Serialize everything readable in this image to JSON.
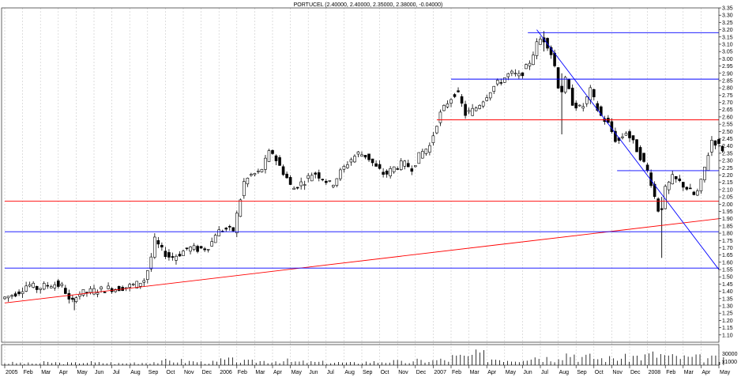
{
  "chart_data": {
    "type": "candlestick",
    "title": "PORTUCEL (2.40000, 2.40000, 2.35000, 2.38000, -0.04000)",
    "y_axis": {
      "ylim": [
        1.05,
        3.35
      ],
      "ticks": [
        "1.10",
        "1.15",
        "1.20",
        "1.25",
        "1.30",
        "1.35",
        "1.40",
        "1.45",
        "1.50",
        "1.55",
        "1.60",
        "1.65",
        "1.70",
        "1.75",
        "1.80",
        "1.85",
        "1.90",
        "1.95",
        "2.00",
        "2.05",
        "2.10",
        "2.15",
        "2.20",
        "2.25",
        "2.30",
        "2.35",
        "2.40",
        "2.45",
        "2.50",
        "2.55",
        "2.60",
        "2.65",
        "2.70",
        "2.75",
        "2.80",
        "2.85",
        "2.90",
        "2.95",
        "3.00",
        "3.05",
        "3.10",
        "3.15",
        "3.20",
        "3.25",
        "3.30",
        "3.35"
      ]
    },
    "x_axis": {
      "xlim": [
        0,
        41
      ],
      "labels": [
        {
          "m": 0,
          "text": "2005"
        },
        {
          "m": 1,
          "text": "Feb"
        },
        {
          "m": 2,
          "text": "Mar"
        },
        {
          "m": 3,
          "text": "Apr"
        },
        {
          "m": 4,
          "text": "May"
        },
        {
          "m": 5,
          "text": "Jun"
        },
        {
          "m": 6,
          "text": "Jul"
        },
        {
          "m": 7,
          "text": "Aug"
        },
        {
          "m": 8,
          "text": "Sep"
        },
        {
          "m": 9,
          "text": "Oct"
        },
        {
          "m": 10,
          "text": "Nov"
        },
        {
          "m": 11,
          "text": "Dec"
        },
        {
          "m": 12,
          "text": "2006"
        },
        {
          "m": 13,
          "text": "Feb"
        },
        {
          "m": 14,
          "text": "Mar"
        },
        {
          "m": 15,
          "text": "Apr"
        },
        {
          "m": 16,
          "text": "May"
        },
        {
          "m": 17,
          "text": "Jun"
        },
        {
          "m": 18,
          "text": "Jul"
        },
        {
          "m": 19,
          "text": "Aug"
        },
        {
          "m": 20,
          "text": "Sep"
        },
        {
          "m": 21,
          "text": "Oct"
        },
        {
          "m": 22,
          "text": "Nov"
        },
        {
          "m": 23,
          "text": "Dec"
        },
        {
          "m": 24,
          "text": "2007"
        },
        {
          "m": 25,
          "text": "Feb"
        },
        {
          "m": 26,
          "text": "Mar"
        },
        {
          "m": 27,
          "text": "Apr"
        },
        {
          "m": 28,
          "text": "May"
        },
        {
          "m": 29,
          "text": "Jun"
        },
        {
          "m": 30,
          "text": "Jul"
        },
        {
          "m": 31,
          "text": "Aug"
        },
        {
          "m": 32,
          "text": "Sep"
        },
        {
          "m": 33,
          "text": "Oct"
        },
        {
          "m": 34,
          "text": "Nov"
        },
        {
          "m": 35,
          "text": "Dec"
        },
        {
          "m": 36,
          "text": "2008"
        },
        {
          "m": 37,
          "text": "Feb"
        },
        {
          "m": 38,
          "text": "Mar"
        },
        {
          "m": 39,
          "text": "Apr"
        },
        {
          "m": 40,
          "text": "May"
        },
        {
          "m": 41,
          "text": "Jun"
        },
        {
          "m": 42,
          "text": "Jul"
        }
      ]
    },
    "volume_axis": {
      "label": "30000",
      "suffix": "x1000"
    },
    "price_path": [
      [
        0,
        1.35
      ],
      [
        0.5,
        1.37
      ],
      [
        1,
        1.4
      ],
      [
        1.5,
        1.45
      ],
      [
        2,
        1.42
      ],
      [
        2.5,
        1.44
      ],
      [
        3,
        1.45
      ],
      [
        3.5,
        1.43
      ],
      [
        3.9,
        1.3
      ],
      [
        4.2,
        1.38
      ],
      [
        5,
        1.4
      ],
      [
        6,
        1.42
      ],
      [
        6.5,
        1.42
      ],
      [
        7,
        1.43
      ],
      [
        7.6,
        1.45
      ],
      [
        8,
        1.48
      ],
      [
        8.3,
        1.58
      ],
      [
        8.6,
        1.75
      ],
      [
        9,
        1.68
      ],
      [
        9.5,
        1.63
      ],
      [
        10,
        1.66
      ],
      [
        10.5,
        1.7
      ],
      [
        11,
        1.69
      ],
      [
        11.5,
        1.7
      ],
      [
        11.8,
        1.74
      ],
      [
        12,
        1.8
      ],
      [
        12.5,
        1.83
      ],
      [
        13,
        1.82
      ],
      [
        13.3,
        1.98
      ],
      [
        13.6,
        2.15
      ],
      [
        14,
        2.2
      ],
      [
        14.5,
        2.22
      ],
      [
        14.9,
        2.32
      ],
      [
        15.1,
        2.38
      ],
      [
        15.5,
        2.28
      ],
      [
        16,
        2.18
      ],
      [
        16.3,
        2.1
      ],
      [
        16.6,
        2.13
      ],
      [
        17,
        2.16
      ],
      [
        17.5,
        2.22
      ],
      [
        18,
        2.18
      ],
      [
        18.5,
        2.13
      ],
      [
        19,
        2.22
      ],
      [
        19.5,
        2.3
      ],
      [
        20,
        2.35
      ],
      [
        20.5,
        2.33
      ],
      [
        21,
        2.25
      ],
      [
        21.5,
        2.2
      ],
      [
        22,
        2.25
      ],
      [
        22.5,
        2.28
      ],
      [
        23,
        2.25
      ],
      [
        23.5,
        2.35
      ],
      [
        24,
        2.4
      ],
      [
        24.5,
        2.6
      ],
      [
        25,
        2.7
      ],
      [
        25.5,
        2.78
      ],
      [
        26,
        2.62
      ],
      [
        26.5,
        2.65
      ],
      [
        27,
        2.72
      ],
      [
        27.5,
        2.8
      ],
      [
        28,
        2.85
      ],
      [
        28.5,
        2.9
      ],
      [
        29,
        2.88
      ],
      [
        29.5,
        2.95
      ],
      [
        30,
        3.1
      ],
      [
        30.3,
        3.15
      ],
      [
        30.7,
        3.08
      ],
      [
        31,
        2.95
      ],
      [
        31.3,
        2.75
      ],
      [
        31.6,
        2.85
      ],
      [
        32,
        2.7
      ],
      [
        32.5,
        2.65
      ],
      [
        33,
        2.78
      ],
      [
        33.5,
        2.62
      ],
      [
        34,
        2.55
      ],
      [
        34.5,
        2.42
      ],
      [
        35,
        2.5
      ],
      [
        35.5,
        2.4
      ],
      [
        36,
        2.28
      ],
      [
        36.3,
        2.2
      ],
      [
        36.6,
        2.05
      ],
      [
        36.9,
        1.92
      ],
      [
        37.2,
        2.1
      ],
      [
        37.6,
        2.18
      ],
      [
        38,
        2.15
      ],
      [
        38.5,
        2.1
      ],
      [
        38.9,
        2.05
      ],
      [
        39.2,
        2.15
      ],
      [
        39.5,
        2.3
      ],
      [
        39.8,
        2.44
      ],
      [
        40.1,
        2.42
      ],
      [
        40.3,
        2.38
      ]
    ],
    "spikes": [
      {
        "x": 3.9,
        "high": 1.35,
        "low": 1.27
      },
      {
        "x": 30.2,
        "high": 3.19,
        "low": 3.05
      },
      {
        "x": 36.8,
        "high": 2.05,
        "low": 1.63
      },
      {
        "x": 31.2,
        "high": 2.9,
        "low": 2.48
      }
    ],
    "volume": [
      0.15,
      0.12,
      0.18,
      0.14,
      0.2,
      0.16,
      0.12,
      0.18,
      0.22,
      0.3,
      0.25,
      0.2,
      0.35,
      0.25,
      0.28,
      0.3,
      0.22,
      0.2,
      0.18,
      0.15,
      0.22,
      0.25,
      0.2,
      0.3,
      0.35,
      0.55,
      0.7,
      0.45,
      0.4,
      0.6,
      0.5,
      0.8,
      0.55,
      0.45,
      0.5,
      0.6,
      0.7,
      0.55,
      0.5,
      0.45,
      0.35
    ],
    "lines": [
      {
        "color": "#ff0000",
        "x1": 0,
        "y1": 1.32,
        "x2": 41,
        "y2": 1.9
      },
      {
        "color": "#0000ff",
        "x1": 29.8,
        "y1": 3.2,
        "x2": 41,
        "y2": 1.55
      },
      {
        "color": "#0000ff",
        "x1": 0,
        "y1": 1.56,
        "x2": 41,
        "y2": 1.56
      },
      {
        "color": "#0000ff",
        "x1": 0,
        "y1": 1.81,
        "x2": 41,
        "y2": 1.81
      },
      {
        "color": "#ff0000",
        "x1": 0,
        "y1": 2.02,
        "x2": 41,
        "y2": 2.02
      },
      {
        "color": "#0000ff",
        "x1": 34.3,
        "y1": 2.23,
        "x2": 41,
        "y2": 2.23
      },
      {
        "color": "#ff0000",
        "x1": 24.2,
        "y1": 2.58,
        "x2": 41,
        "y2": 2.58
      },
      {
        "color": "#0000ff",
        "x1": 25,
        "y1": 2.86,
        "x2": 41,
        "y2": 2.86
      },
      {
        "color": "#0000ff",
        "x1": 29.3,
        "y1": 3.18,
        "x2": 41,
        "y2": 3.18
      }
    ],
    "grid": true,
    "colors": {
      "up": "#ffffff",
      "down": "#000000",
      "grid": "#c8c8c8"
    }
  }
}
